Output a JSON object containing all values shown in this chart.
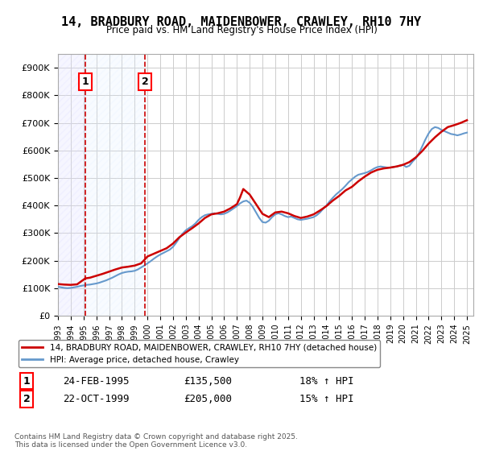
{
  "title": "14, BRADBURY ROAD, MAIDENBOWER, CRAWLEY, RH10 7HY",
  "subtitle": "Price paid vs. HM Land Registry's House Price Index (HPI)",
  "ylabel": "",
  "xlabel": "",
  "background_color": "#ffffff",
  "plot_bg_color": "#ffffff",
  "grid_color": "#cccccc",
  "line_color_price": "#cc0000",
  "line_color_hpi": "#6699cc",
  "hatch_color1": "#ffcccc",
  "hatch_color2": "#cce0ff",
  "ylim": [
    0,
    950000
  ],
  "yticks": [
    0,
    100000,
    200000,
    300000,
    400000,
    500000,
    600000,
    700000,
    800000,
    900000
  ],
  "ytick_labels": [
    "£0",
    "£100K",
    "£200K",
    "£300K",
    "£400K",
    "£500K",
    "£600K",
    "£700K",
    "£800K",
    "£900K"
  ],
  "purchase1_date": 1995.14,
  "purchase1_price": 135500,
  "purchase1_label": "1",
  "purchase2_date": 1999.81,
  "purchase2_price": 205000,
  "purchase2_label": "2",
  "legend_price_label": "14, BRADBURY ROAD, MAIDENBOWER, CRAWLEY, RH10 7HY (detached house)",
  "legend_hpi_label": "HPI: Average price, detached house, Crawley",
  "transaction1_num": "1",
  "transaction1_date": "24-FEB-1995",
  "transaction1_price": "£135,500",
  "transaction1_hpi": "18% ↑ HPI",
  "transaction2_num": "2",
  "transaction2_date": "22-OCT-1999",
  "transaction2_price": "£205,000",
  "transaction2_hpi": "15% ↑ HPI",
  "footer": "Contains HM Land Registry data © Crown copyright and database right 2025.\nThis data is licensed under the Open Government Licence v3.0.",
  "hpi_data": {
    "years": [
      1993.0,
      1993.25,
      1993.5,
      1993.75,
      1994.0,
      1994.25,
      1994.5,
      1994.75,
      1995.0,
      1995.25,
      1995.5,
      1995.75,
      1996.0,
      1996.25,
      1996.5,
      1996.75,
      1997.0,
      1997.25,
      1997.5,
      1997.75,
      1998.0,
      1998.25,
      1998.5,
      1998.75,
      1999.0,
      1999.25,
      1999.5,
      1999.75,
      2000.0,
      2000.25,
      2000.5,
      2000.75,
      2001.0,
      2001.25,
      2001.5,
      2001.75,
      2002.0,
      2002.25,
      2002.5,
      2002.75,
      2003.0,
      2003.25,
      2003.5,
      2003.75,
      2004.0,
      2004.25,
      2004.5,
      2004.75,
      2005.0,
      2005.25,
      2005.5,
      2005.75,
      2006.0,
      2006.25,
      2006.5,
      2006.75,
      2007.0,
      2007.25,
      2007.5,
      2007.75,
      2008.0,
      2008.25,
      2008.5,
      2008.75,
      2009.0,
      2009.25,
      2009.5,
      2009.75,
      2010.0,
      2010.25,
      2010.5,
      2010.75,
      2011.0,
      2011.25,
      2011.5,
      2011.75,
      2012.0,
      2012.25,
      2012.5,
      2012.75,
      2013.0,
      2013.25,
      2013.5,
      2013.75,
      2014.0,
      2014.25,
      2014.5,
      2014.75,
      2015.0,
      2015.25,
      2015.5,
      2015.75,
      2016.0,
      2016.25,
      2016.5,
      2016.75,
      2017.0,
      2017.25,
      2017.5,
      2017.75,
      2018.0,
      2018.25,
      2018.5,
      2018.75,
      2019.0,
      2019.25,
      2019.5,
      2019.75,
      2020.0,
      2020.25,
      2020.5,
      2020.75,
      2021.0,
      2021.25,
      2021.5,
      2021.75,
      2022.0,
      2022.25,
      2022.5,
      2022.75,
      2023.0,
      2023.25,
      2023.5,
      2023.75,
      2024.0,
      2024.25,
      2024.5,
      2024.75,
      2025.0
    ],
    "values": [
      105000,
      103000,
      101000,
      100000,
      101000,
      103000,
      105000,
      108000,
      110000,
      112000,
      113000,
      115000,
      117000,
      120000,
      124000,
      128000,
      133000,
      138000,
      144000,
      150000,
      155000,
      158000,
      160000,
      161000,
      163000,
      168000,
      175000,
      182000,
      190000,
      198000,
      207000,
      215000,
      222000,
      228000,
      234000,
      240000,
      250000,
      265000,
      282000,
      298000,
      310000,
      318000,
      325000,
      335000,
      348000,
      358000,
      365000,
      368000,
      370000,
      372000,
      370000,
      368000,
      370000,
      375000,
      382000,
      390000,
      398000,
      408000,
      415000,
      418000,
      410000,
      395000,
      375000,
      355000,
      340000,
      338000,
      345000,
      358000,
      368000,
      372000,
      368000,
      362000,
      358000,
      360000,
      355000,
      350000,
      348000,
      350000,
      352000,
      355000,
      358000,
      365000,
      375000,
      388000,
      400000,
      415000,
      428000,
      440000,
      450000,
      460000,
      472000,
      485000,
      495000,
      505000,
      512000,
      515000,
      518000,
      522000,
      528000,
      535000,
      540000,
      542000,
      540000,
      538000,
      538000,
      540000,
      542000,
      545000,
      548000,
      540000,
      545000,
      560000,
      572000,
      590000,
      615000,
      640000,
      662000,
      678000,
      685000,
      682000,
      675000,
      670000,
      665000,
      660000,
      658000,
      655000,
      658000,
      662000,
      665000
    ]
  },
  "price_data": {
    "years": [
      1993.0,
      1993.5,
      1994.0,
      1994.5,
      1995.14,
      1995.5,
      1996.0,
      1996.5,
      1997.0,
      1997.5,
      1998.0,
      1998.5,
      1999.0,
      1999.5,
      1999.81,
      2000.0,
      2000.5,
      2001.0,
      2001.5,
      2002.0,
      2002.5,
      2003.0,
      2003.5,
      2004.0,
      2004.5,
      2005.0,
      2005.5,
      2006.0,
      2006.5,
      2007.0,
      2007.25,
      2007.5,
      2008.0,
      2008.5,
      2009.0,
      2009.5,
      2010.0,
      2010.5,
      2011.0,
      2011.5,
      2012.0,
      2012.5,
      2013.0,
      2013.5,
      2014.0,
      2014.5,
      2015.0,
      2015.5,
      2016.0,
      2016.5,
      2017.0,
      2017.5,
      2018.0,
      2018.5,
      2019.0,
      2019.5,
      2020.0,
      2020.5,
      2021.0,
      2021.5,
      2022.0,
      2022.5,
      2023.0,
      2023.5,
      2024.0,
      2024.5,
      2025.0
    ],
    "values": [
      115000,
      113000,
      112000,
      114000,
      135500,
      138000,
      145000,
      152000,
      160000,
      168000,
      175000,
      178000,
      182000,
      190000,
      205000,
      215000,
      225000,
      235000,
      245000,
      262000,
      285000,
      302000,
      318000,
      335000,
      355000,
      368000,
      372000,
      378000,
      390000,
      405000,
      430000,
      460000,
      440000,
      405000,
      370000,
      358000,
      375000,
      378000,
      372000,
      362000,
      355000,
      360000,
      368000,
      382000,
      398000,
      418000,
      435000,
      455000,
      468000,
      488000,
      505000,
      520000,
      530000,
      535000,
      538000,
      542000,
      548000,
      558000,
      575000,
      598000,
      625000,
      648000,
      668000,
      685000,
      692000,
      700000,
      710000
    ]
  }
}
